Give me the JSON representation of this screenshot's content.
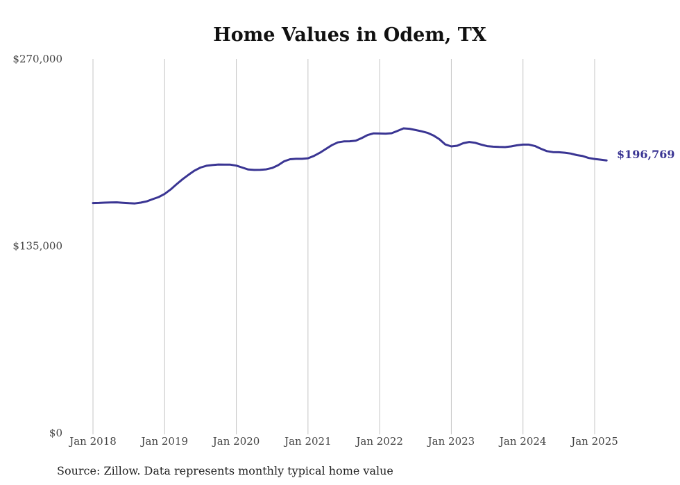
{
  "source_note": "Source: Zillow. Data represents monthly typical home value",
  "colors": {
    "line": "#3a3593",
    "grid": "#c4c4c4"
  },
  "chart_data": {
    "type": "line",
    "title": "Home Values in Odem, TX",
    "xlabel": "",
    "ylabel": "",
    "ylim": [
      0,
      270000
    ],
    "y_ticks": [
      0,
      135000,
      270000
    ],
    "y_tick_labels": [
      "$0",
      "$135,000",
      "$270,000"
    ],
    "x_ticks": [
      "Jan 2018",
      "Jan 2019",
      "Jan 2020",
      "Jan 2021",
      "Jan 2022",
      "Jan 2023",
      "Jan 2024",
      "Jan 2025"
    ],
    "grid": "vertical",
    "end_label": "$196,769",
    "series": [
      {
        "x": [
          "2018-01",
          "2018-02",
          "2018-03",
          "2018-04",
          "2018-05",
          "2018-06",
          "2018-07",
          "2018-08",
          "2018-09",
          "2018-10",
          "2018-11",
          "2018-12",
          "2019-01",
          "2019-02",
          "2019-03",
          "2019-04",
          "2019-05",
          "2019-06",
          "2019-07",
          "2019-08",
          "2019-09",
          "2019-10",
          "2019-11",
          "2019-12",
          "2020-01",
          "2020-02",
          "2020-03",
          "2020-04",
          "2020-05",
          "2020-06",
          "2020-07",
          "2020-08",
          "2020-09",
          "2020-10",
          "2020-11",
          "2020-12",
          "2021-01",
          "2021-02",
          "2021-03",
          "2021-04",
          "2021-05",
          "2021-06",
          "2021-07",
          "2021-08",
          "2021-09",
          "2021-10",
          "2021-11",
          "2021-12",
          "2022-01",
          "2022-02",
          "2022-03",
          "2022-04",
          "2022-05",
          "2022-06",
          "2022-07",
          "2022-08",
          "2022-09",
          "2022-10",
          "2022-11",
          "2022-12",
          "2023-01",
          "2023-02",
          "2023-03",
          "2023-04",
          "2023-05",
          "2023-06",
          "2023-07",
          "2023-08",
          "2023-09",
          "2023-10",
          "2023-11",
          "2023-12",
          "2024-01",
          "2024-02",
          "2024-03",
          "2024-04",
          "2024-05",
          "2024-06",
          "2024-07",
          "2024-08",
          "2024-09",
          "2024-10",
          "2024-11",
          "2024-12",
          "2025-01",
          "2025-02",
          "2025-03"
        ],
        "values": [
          166000,
          166100,
          166300,
          166400,
          166500,
          166200,
          165900,
          165700,
          166300,
          167200,
          168800,
          170300,
          172600,
          175800,
          179600,
          183200,
          186400,
          189400,
          191600,
          192900,
          193400,
          193800,
          193700,
          193700,
          193000,
          191600,
          190200,
          189900,
          190000,
          190300,
          191300,
          193300,
          196100,
          197600,
          197900,
          197900,
          198300,
          200000,
          202300,
          205100,
          207800,
          209800,
          210500,
          210600,
          211000,
          212900,
          215100,
          216300,
          216200,
          216100,
          216400,
          218100,
          219900,
          219600,
          218700,
          217800,
          216700,
          214800,
          212100,
          208300,
          206900,
          207400,
          209200,
          210100,
          209500,
          208200,
          207100,
          206700,
          206500,
          206400,
          206900,
          207700,
          208200,
          208200,
          207200,
          205200,
          203500,
          202800,
          202700,
          202300,
          201700,
          200600,
          199900,
          198500,
          197800,
          197300,
          196769
        ]
      }
    ]
  }
}
